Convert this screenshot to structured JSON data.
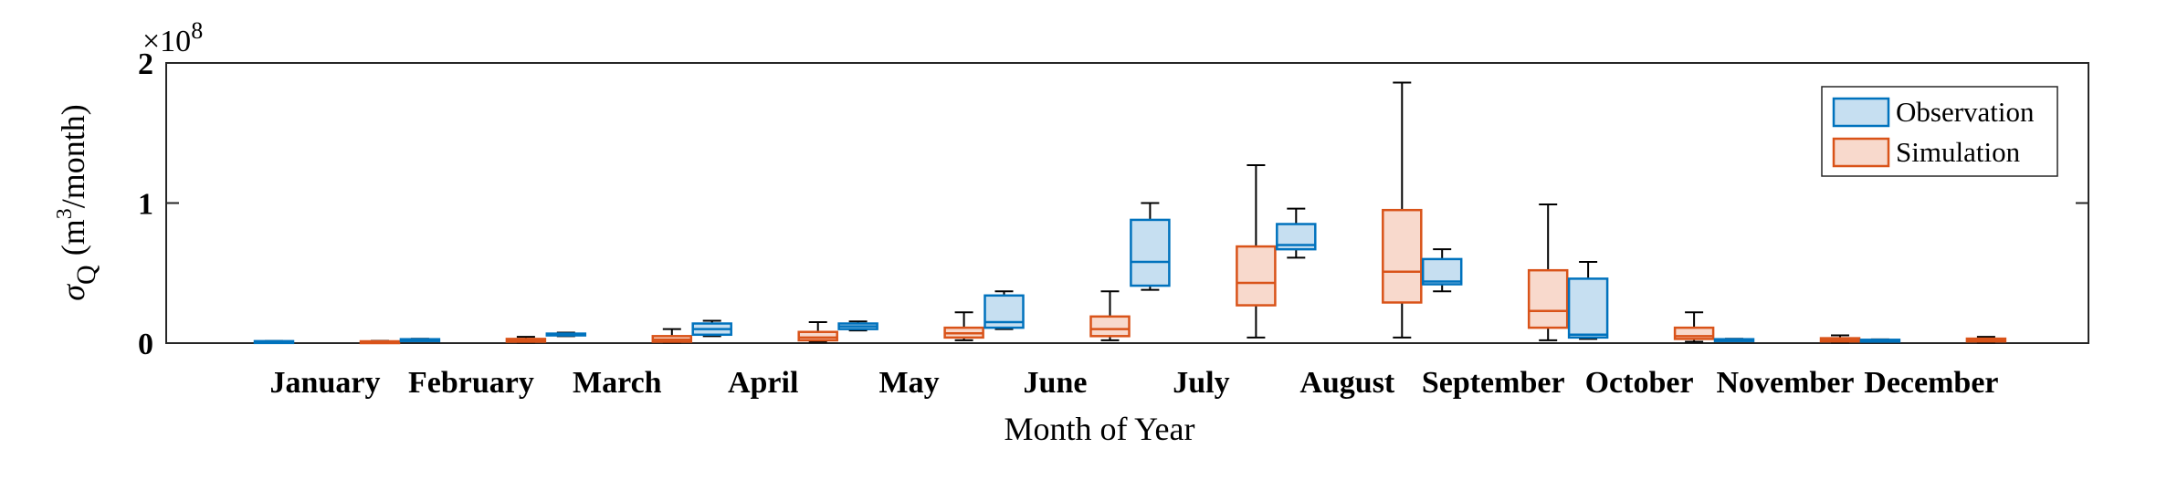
{
  "chart_data": {
    "type": "box",
    "xlabel": "Month of Year",
    "ylabel_symbol": "σ",
    "ylabel_subscript": "Q",
    "ylabel_unit_pre": "(m",
    "ylabel_unit_sup": "3",
    "ylabel_unit_post": "/month)",
    "exponent_label": "×10",
    "exponent_power": "8",
    "ylim": [
      0,
      2
    ],
    "y_ticks": [
      0,
      1,
      2
    ],
    "y_tick_labels": [
      "0",
      "1",
      "2"
    ],
    "grid": false,
    "legend_position": "top-right",
    "categories": [
      "January",
      "February",
      "March",
      "April",
      "May",
      "June",
      "July",
      "August",
      "September",
      "October",
      "November",
      "December"
    ],
    "series": [
      {
        "name": "Observation",
        "stroke": "#0072BD",
        "fill": "#c6dff1",
        "boxes": [
          {
            "min": 0.008,
            "q1": 0.01,
            "median": 0.012,
            "q3": 0.014,
            "max": 0.016
          },
          {
            "min": 0.02,
            "q1": 0.023,
            "median": 0.025,
            "q3": 0.028,
            "max": 0.031
          },
          {
            "min": 0.05,
            "q1": 0.055,
            "median": 0.06,
            "q3": 0.068,
            "max": 0.075
          },
          {
            "min": 0.05,
            "q1": 0.06,
            "median": 0.1,
            "q3": 0.14,
            "max": 0.16
          },
          {
            "min": 0.09,
            "q1": 0.1,
            "median": 0.12,
            "q3": 0.14,
            "max": 0.155
          },
          {
            "min": 0.1,
            "q1": 0.11,
            "median": 0.15,
            "q3": 0.34,
            "max": 0.37
          },
          {
            "min": 0.38,
            "q1": 0.41,
            "median": 0.58,
            "q3": 0.88,
            "max": 1.0
          },
          {
            "min": 0.61,
            "q1": 0.67,
            "median": 0.7,
            "q3": 0.85,
            "max": 0.96
          },
          {
            "min": 0.37,
            "q1": 0.42,
            "median": 0.44,
            "q3": 0.6,
            "max": 0.67
          },
          {
            "min": 0.03,
            "q1": 0.04,
            "median": 0.06,
            "q3": 0.46,
            "max": 0.58
          },
          {
            "min": 0.02,
            "q1": 0.023,
            "median": 0.025,
            "q3": 0.028,
            "max": 0.031
          },
          {
            "min": 0.016,
            "q1": 0.019,
            "median": 0.021,
            "q3": 0.024,
            "max": 0.027
          }
        ]
      },
      {
        "name": "Simulation",
        "stroke": "#D95319",
        "fill": "#f8d9cc",
        "boxes": [
          {
            "min": 0.005,
            "q1": 0.008,
            "median": 0.01,
            "q3": 0.013,
            "max": 0.016
          },
          {
            "min": 0.005,
            "q1": 0.01,
            "median": 0.018,
            "q3": 0.03,
            "max": 0.045
          },
          {
            "min": 0.005,
            "q1": 0.01,
            "median": 0.025,
            "q3": 0.05,
            "max": 0.1
          },
          {
            "min": 0.01,
            "q1": 0.02,
            "median": 0.04,
            "q3": 0.08,
            "max": 0.15
          },
          {
            "min": 0.02,
            "q1": 0.04,
            "median": 0.07,
            "q3": 0.11,
            "max": 0.22
          },
          {
            "min": 0.02,
            "q1": 0.05,
            "median": 0.1,
            "q3": 0.19,
            "max": 0.37
          },
          {
            "min": 0.04,
            "q1": 0.27,
            "median": 0.43,
            "q3": 0.69,
            "max": 1.27
          },
          {
            "min": 0.04,
            "q1": 0.29,
            "median": 0.51,
            "q3": 0.95,
            "max": 1.86
          },
          {
            "min": 0.02,
            "q1": 0.11,
            "median": 0.23,
            "q3": 0.52,
            "max": 0.99
          },
          {
            "min": 0.01,
            "q1": 0.03,
            "median": 0.05,
            "q3": 0.11,
            "max": 0.22
          },
          {
            "min": 0.005,
            "q1": 0.012,
            "median": 0.02,
            "q3": 0.035,
            "max": 0.055
          },
          {
            "min": 0.005,
            "q1": 0.012,
            "median": 0.02,
            "q3": 0.032,
            "max": 0.045
          }
        ]
      }
    ]
  }
}
